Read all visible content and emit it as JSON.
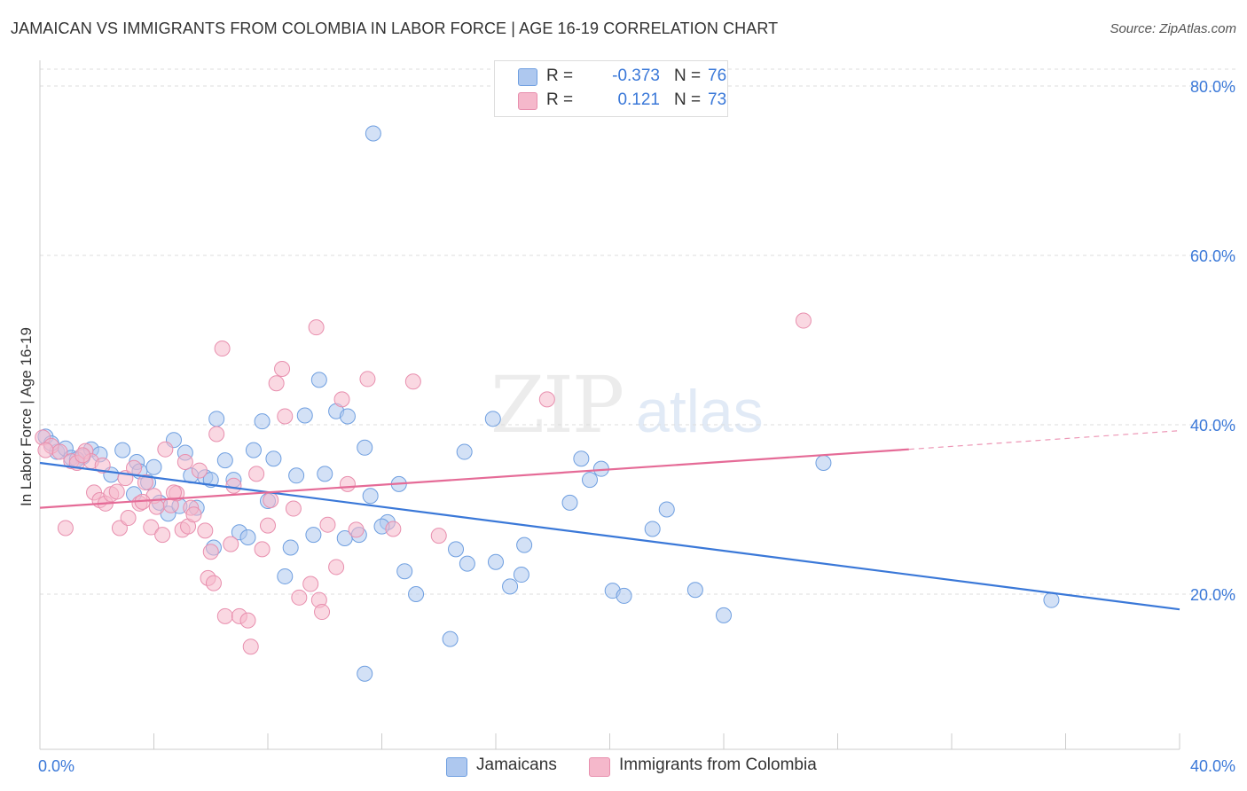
{
  "title": "JAMAICAN VS IMMIGRANTS FROM COLOMBIA IN LABOR FORCE | AGE 16-19 CORRELATION CHART",
  "source": "Source: ZipAtlas.com",
  "watermark": {
    "zip": "ZIP",
    "atlas": "atlas"
  },
  "legend_top": {
    "rows": [
      {
        "r_label": "R =",
        "r_value": "-0.373",
        "n_label": "N =",
        "n_value": "76",
        "color": "#aec8ef"
      },
      {
        "r_label": "R =",
        "r_value": "0.121",
        "n_label": "N =",
        "n_value": "73",
        "color": "#f5b8cb"
      }
    ]
  },
  "legend_bottom": {
    "items": [
      {
        "label": "Jamaicans",
        "color": "#aec8ef"
      },
      {
        "label": "Immigrants from Colombia",
        "color": "#f5b8cb"
      }
    ]
  },
  "chart_data": {
    "type": "scatter",
    "title": "JAMAICAN VS IMMIGRANTS FROM COLOMBIA IN LABOR FORCE | AGE 16-19 CORRELATION CHART",
    "xlabel": "",
    "ylabel": "In Labor Force | Age 16-19",
    "xlim": [
      0,
      40
    ],
    "ylim": [
      0,
      80
    ],
    "x_tick_labels": [
      "0.0%",
      "40.0%"
    ],
    "y_ticks": [
      20,
      40,
      60,
      80
    ],
    "y_tick_labels": [
      "20.0%",
      "40.0%",
      "60.0%",
      "80.0%"
    ],
    "grid": "horizontal dashed",
    "legend": "bottom-center",
    "colors": {
      "jamaicans": "#3a78d8",
      "colombia": "#e56b97"
    },
    "series": [
      {
        "name": "Jamaicans",
        "color": "#aec8ef",
        "edge": "#6f9fe0",
        "trend": {
          "x": [
            0,
            40
          ],
          "y": [
            35.5,
            18.2
          ]
        },
        "points": [
          [
            0.2,
            38.6
          ],
          [
            0.6,
            36.8
          ],
          [
            0.9,
            37.2
          ],
          [
            1.1,
            36.1
          ],
          [
            1.5,
            36.2
          ],
          [
            1.8,
            37.1
          ],
          [
            2.1,
            36.5
          ],
          [
            2.5,
            34.1
          ],
          [
            2.9,
            37.0
          ],
          [
            3.3,
            31.8
          ],
          [
            3.4,
            35.6
          ],
          [
            3.5,
            34.5
          ],
          [
            3.8,
            33.2
          ],
          [
            4.0,
            35.0
          ],
          [
            4.2,
            30.8
          ],
          [
            4.5,
            29.5
          ],
          [
            4.7,
            38.2
          ],
          [
            4.9,
            30.4
          ],
          [
            5.1,
            36.7
          ],
          [
            5.3,
            34.0
          ],
          [
            5.5,
            30.2
          ],
          [
            5.8,
            33.8
          ],
          [
            6.1,
            25.5
          ],
          [
            6.2,
            40.7
          ],
          [
            6.5,
            35.8
          ],
          [
            6.8,
            33.5
          ],
          [
            7.0,
            27.3
          ],
          [
            7.3,
            26.7
          ],
          [
            7.5,
            37.0
          ],
          [
            7.8,
            40.4
          ],
          [
            8.0,
            31.0
          ],
          [
            8.2,
            36.0
          ],
          [
            8.6,
            22.1
          ],
          [
            8.8,
            25.5
          ],
          [
            9.0,
            34.0
          ],
          [
            9.3,
            41.1
          ],
          [
            9.6,
            27.0
          ],
          [
            9.8,
            45.3
          ],
          [
            10.0,
            34.2
          ],
          [
            10.4,
            41.6
          ],
          [
            10.7,
            26.6
          ],
          [
            10.8,
            41.0
          ],
          [
            11.2,
            27.0
          ],
          [
            11.4,
            37.3
          ],
          [
            11.6,
            31.6
          ],
          [
            11.7,
            74.4
          ],
          [
            12.2,
            28.5
          ],
          [
            12.6,
            33.0
          ],
          [
            12.8,
            22.7
          ],
          [
            13.2,
            20.0
          ],
          [
            14.4,
            14.7
          ],
          [
            14.6,
            25.3
          ],
          [
            14.9,
            36.8
          ],
          [
            15.0,
            23.6
          ],
          [
            11.4,
            10.6
          ],
          [
            15.9,
            40.7
          ],
          [
            16.0,
            23.8
          ],
          [
            16.5,
            20.9
          ],
          [
            16.9,
            22.3
          ],
          [
            17.0,
            25.8
          ],
          [
            18.6,
            30.8
          ],
          [
            19.0,
            36.0
          ],
          [
            19.3,
            33.5
          ],
          [
            19.7,
            34.8
          ],
          [
            20.1,
            20.4
          ],
          [
            20.5,
            19.8
          ],
          [
            21.5,
            27.7
          ],
          [
            22.0,
            30.0
          ],
          [
            23.0,
            20.5
          ],
          [
            24.0,
            17.5
          ],
          [
            27.5,
            35.5
          ],
          [
            35.5,
            19.3
          ],
          [
            0.4,
            37.8
          ],
          [
            1.3,
            35.9
          ],
          [
            6.0,
            33.5
          ],
          [
            12.0,
            28.0
          ]
        ]
      },
      {
        "name": "Immigrants from Colombia",
        "color": "#f5b8cb",
        "edge": "#e88fae",
        "trend": {
          "x": [
            0,
            30.5
          ],
          "y": [
            30.2,
            37.1
          ]
        },
        "trend_dashed": {
          "x": [
            30.5,
            40
          ],
          "y": [
            37.1,
            39.3
          ]
        },
        "points": [
          [
            0.1,
            38.5
          ],
          [
            0.4,
            37.5
          ],
          [
            0.7,
            36.8
          ],
          [
            0.9,
            27.8
          ],
          [
            1.1,
            35.7
          ],
          [
            1.3,
            35.5
          ],
          [
            1.6,
            36.9
          ],
          [
            1.8,
            35.7
          ],
          [
            1.9,
            32.0
          ],
          [
            2.1,
            31.1
          ],
          [
            2.3,
            30.7
          ],
          [
            2.5,
            31.8
          ],
          [
            2.7,
            32.1
          ],
          [
            2.8,
            27.8
          ],
          [
            3.0,
            33.7
          ],
          [
            3.1,
            29.0
          ],
          [
            3.3,
            34.9
          ],
          [
            3.5,
            30.7
          ],
          [
            3.7,
            33.2
          ],
          [
            3.9,
            27.9
          ],
          [
            4.0,
            31.6
          ],
          [
            4.1,
            30.3
          ],
          [
            4.3,
            27.0
          ],
          [
            4.4,
            37.1
          ],
          [
            4.6,
            30.5
          ],
          [
            4.8,
            31.9
          ],
          [
            5.0,
            27.6
          ],
          [
            5.1,
            35.6
          ],
          [
            5.2,
            28.0
          ],
          [
            5.3,
            30.2
          ],
          [
            5.4,
            29.4
          ],
          [
            5.6,
            34.6
          ],
          [
            5.8,
            27.5
          ],
          [
            5.9,
            21.9
          ],
          [
            6.0,
            25.0
          ],
          [
            6.1,
            21.3
          ],
          [
            6.2,
            38.9
          ],
          [
            6.4,
            49.0
          ],
          [
            6.5,
            17.4
          ],
          [
            6.7,
            25.9
          ],
          [
            7.0,
            17.4
          ],
          [
            7.3,
            16.9
          ],
          [
            7.4,
            13.8
          ],
          [
            7.6,
            34.2
          ],
          [
            7.8,
            25.3
          ],
          [
            8.0,
            28.1
          ],
          [
            8.1,
            31.1
          ],
          [
            8.3,
            44.9
          ],
          [
            8.5,
            46.6
          ],
          [
            8.6,
            41.0
          ],
          [
            8.9,
            30.1
          ],
          [
            9.1,
            19.6
          ],
          [
            9.5,
            21.2
          ],
          [
            9.7,
            51.5
          ],
          [
            9.8,
            19.3
          ],
          [
            9.9,
            17.9
          ],
          [
            10.1,
            28.2
          ],
          [
            10.4,
            23.2
          ],
          [
            10.6,
            43.0
          ],
          [
            10.8,
            33.0
          ],
          [
            11.1,
            27.6
          ],
          [
            11.5,
            45.4
          ],
          [
            12.4,
            27.7
          ],
          [
            13.1,
            45.1
          ],
          [
            14.0,
            26.9
          ],
          [
            17.8,
            43.0
          ],
          [
            26.8,
            52.3
          ],
          [
            0.2,
            37.0
          ],
          [
            1.5,
            36.4
          ],
          [
            2.2,
            35.2
          ],
          [
            3.6,
            30.9
          ],
          [
            4.7,
            32.0
          ],
          [
            6.8,
            32.8
          ]
        ]
      }
    ]
  }
}
